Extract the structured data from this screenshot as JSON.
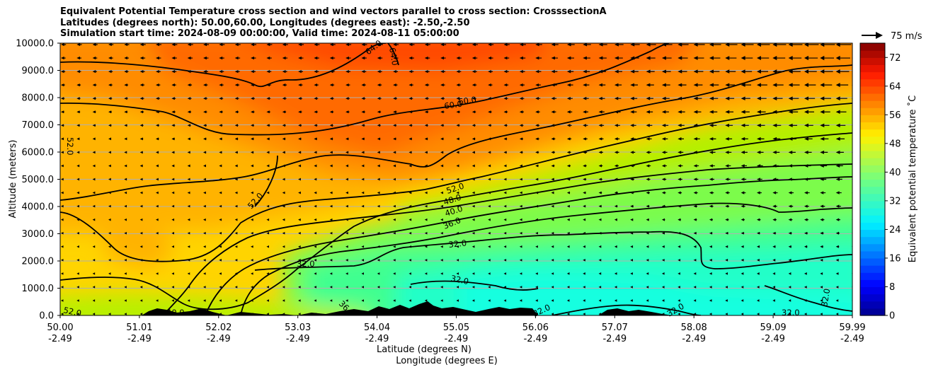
{
  "chart_data": {
    "type": "heatmap",
    "title_lines": [
      "Equivalent Potential Temperature cross section and wind vectors parallel to cross section: CrosssectionA",
      "Latitudes (degrees north): 50.00,60.00, Longitudes (degrees east): -2.50,-2.50",
      "Simulation start time: 2024-08-09 00:00:00, Valid time: 2024-08-11 05:00:00"
    ],
    "ylabel": "Altitude (meters)",
    "xlabel_lat": "Latitude (degrees N)",
    "xlabel_lon": "Longitude (degrees E)",
    "ylim": [
      0,
      10000
    ],
    "yticks": [
      "0.0",
      "1000.0",
      "2000.0",
      "3000.0",
      "4000.0",
      "5000.0",
      "6000.0",
      "7000.0",
      "8000.0",
      "9000.0",
      "10000.0"
    ],
    "xticks_lat": [
      "50.00",
      "51.01",
      "52.02",
      "53.03",
      "54.04",
      "55.05",
      "56.06",
      "57.07",
      "58.08",
      "59.09",
      "59.99"
    ],
    "xticks_lon": [
      "-2.49",
      "-2.49",
      "-2.49",
      "-2.49",
      "-2.49",
      "-2.49",
      "-2.49",
      "-2.49",
      "-2.49",
      "-2.49",
      "-2.49"
    ],
    "colorbar": {
      "label": "Equivalent potential temperature $^\\circ$C",
      "label_display": "Equivalent potential temperature ˚C",
      "ticks": [
        "0",
        "8",
        "16",
        "24",
        "32",
        "40",
        "48",
        "56",
        "64",
        "72"
      ],
      "range": [
        0,
        76
      ]
    },
    "quiver_key": "75 m/s",
    "contour_labels": [
      "64.0",
      "64.0",
      "60.0",
      "60.0",
      "52.0",
      "52.0",
      "52.0",
      "48.0",
      "40.0",
      "36.0",
      "32.0",
      "32.0",
      "32.0",
      "32.0",
      "32.0",
      "32.0",
      "52.0",
      "28",
      "32.0",
      "36",
      "40.0"
    ]
  }
}
